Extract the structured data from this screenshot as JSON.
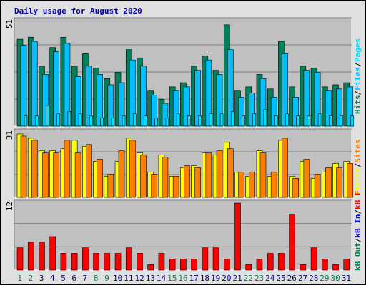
{
  "title": "Daily usage for August 2020",
  "colors": {
    "title": "#0000b0",
    "background": "#e0e0e0",
    "panel": "#c0c0c0",
    "grid": "#808080",
    "hits": "#00805c",
    "files": "#00c0ff",
    "pages": "#00e0ff",
    "visits": "#ffff00",
    "sites": "#ff8000",
    "kbytes": "#ff0000",
    "weekday_label": "#000080",
    "weekend_label": "#00805c",
    "legend_sep": "#000000",
    "kbin": "#0000ff",
    "kbout": "#00805c"
  },
  "legend": {
    "top": [
      {
        "text": "Hits",
        "color_key": "hits"
      },
      {
        "text": "/",
        "color_key": "legend_sep"
      },
      {
        "text": "Files",
        "color_key": "files"
      },
      {
        "text": "/",
        "color_key": "legend_sep"
      },
      {
        "text": "Pages",
        "color_key": "pages"
      }
    ],
    "middle": [
      {
        "text": "Visits",
        "color_key": "visits"
      },
      {
        "text": "/",
        "color_key": "legend_sep"
      },
      {
        "text": "Sites",
        "color_key": "sites"
      }
    ],
    "bottom": [
      {
        "text": "kB Out",
        "color_key": "kbout"
      },
      {
        "text": "/",
        "color_key": "legend_sep"
      },
      {
        "text": "kB In",
        "color_key": "kbin"
      },
      {
        "text": "/",
        "color_key": "legend_sep"
      },
      {
        "text": "kB F",
        "color_key": "kbytes"
      }
    ]
  },
  "chart_data": {
    "type": "bar",
    "categories": [
      "1",
      "2",
      "3",
      "4",
      "5",
      "6",
      "7",
      "8",
      "9",
      "10",
      "11",
      "12",
      "13",
      "14",
      "15",
      "16",
      "17",
      "18",
      "19",
      "20",
      "21",
      "22",
      "23",
      "24",
      "25",
      "26",
      "27",
      "28",
      "29",
      "30",
      "31"
    ],
    "weekend_days": [
      1,
      2,
      8,
      9,
      15,
      16,
      22,
      23,
      29,
      30
    ],
    "panels": [
      {
        "ymax_label": "51",
        "ylim": [
          0,
          51
        ],
        "series": [
          {
            "name": "Hits",
            "color_key": "hits",
            "values": [
              42,
              43,
              29,
              38,
              43,
              29,
              35,
              28,
              23,
              26,
              37,
              33,
              17,
              13,
              19,
              21,
              29,
              34,
              27,
              49,
              17,
              19,
              25,
              18,
              41,
              19,
              29,
              28,
              19,
              20,
              21
            ]
          },
          {
            "name": "Files",
            "color_key": "files",
            "values": [
              39,
              41,
              25,
              36,
              40,
              24,
              29,
              25,
              20,
              21,
              32,
              29,
              15,
              11,
              17,
              19,
              27,
              32,
              25,
              37,
              14,
              16,
              23,
              14,
              35,
              14,
              27,
              26,
              17,
              18,
              19
            ]
          },
          {
            "name": "Pages",
            "color_key": "pages",
            "values": [
              5,
              5,
              10,
              6,
              7,
              6,
              5,
              4,
              4,
              5,
              6,
              5,
              4,
              4,
              6,
              5,
              5,
              6,
              6,
              7,
              5,
              6,
              8,
              5,
              6,
              5,
              5,
              6,
              5,
              5,
              5
            ]
          }
        ]
      },
      {
        "ymax_label": "31",
        "ylim": [
          0,
          31
        ],
        "series": [
          {
            "name": "Visits",
            "color_key": "visits",
            "values": [
              30,
              28,
              22,
              22,
              23,
              27,
              24,
              17,
              10,
              17,
              28,
              21,
              12,
              20,
              10,
              14,
              15,
              21,
              20,
              26,
              12,
              10,
              22,
              10,
              27,
              10,
              17,
              9,
              12,
              16,
              17
            ]
          },
          {
            "name": "Sites",
            "color_key": "sites",
            "values": [
              29,
              27,
              21,
              21,
              27,
              21,
              25,
              18,
              11,
              22,
              27,
              20,
              11,
              19,
              10,
              15,
              14,
              21,
              22,
              23,
              12,
              12,
              21,
              12,
              28,
              9,
              18,
              11,
              14,
              14,
              16
            ]
          }
        ]
      },
      {
        "ymax_label": "12",
        "ylim": [
          0,
          12
        ],
        "series": [
          {
            "name": "kB F",
            "color_key": "kbytes",
            "values": [
              4,
              5,
              5,
              6,
              3,
              3,
              4,
              3,
              3,
              3,
              4,
              3,
              1,
              3,
              2,
              2,
              2,
              4,
              4,
              2,
              12,
              1,
              2,
              3,
              3,
              10,
              1,
              4,
              2,
              1,
              2
            ]
          }
        ]
      }
    ]
  }
}
